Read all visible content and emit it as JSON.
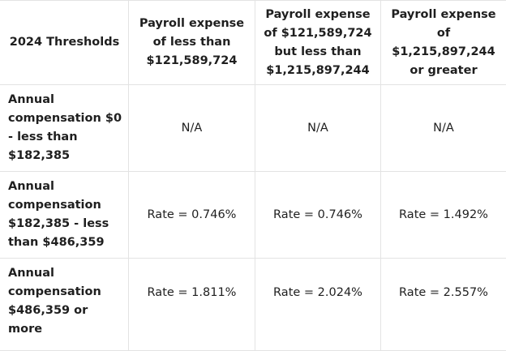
{
  "table": {
    "corner_label": "2024 Thresholds",
    "columns": [
      "Payroll expense of less than $121,589,724",
      "Payroll expense of $121,589,724 but less than $1,215,897,244",
      "Payroll expense of $1,215,897,244 or greater"
    ],
    "rows": [
      {
        "label": "Annual compensation $0 - less than $182,385",
        "cells": [
          "N/A",
          "N/A",
          "N/A"
        ]
      },
      {
        "label": "Annual compensation $182,385 - less than $486,359",
        "cells": [
          "Rate = 0.746%",
          "Rate = 0.746%",
          "Rate = 1.492%"
        ]
      },
      {
        "label": "Annual compensation $486,359 or more",
        "cells": [
          "Rate = 1.811%",
          "Rate = 2.024%",
          "Rate = 2.557%"
        ]
      }
    ]
  }
}
